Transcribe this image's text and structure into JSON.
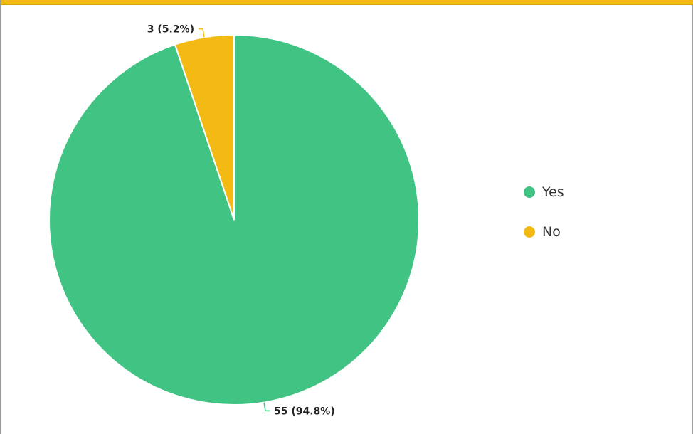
{
  "chart_data": {
    "type": "pie",
    "title": "",
    "categories": [
      "Yes",
      "No"
    ],
    "values": [
      55,
      3
    ],
    "percentages": [
      94.8,
      5.2
    ],
    "data_labels": [
      "55 (94.8%)",
      "3 (5.2%)"
    ],
    "colors": [
      "#41c383",
      "#f3ba14"
    ],
    "legend": {
      "position": "right",
      "items": [
        {
          "label": "Yes",
          "color": "#41c383"
        },
        {
          "label": "No",
          "color": "#f3ba14"
        }
      ]
    },
    "start_angle": "top",
    "direction": "clockwise"
  }
}
